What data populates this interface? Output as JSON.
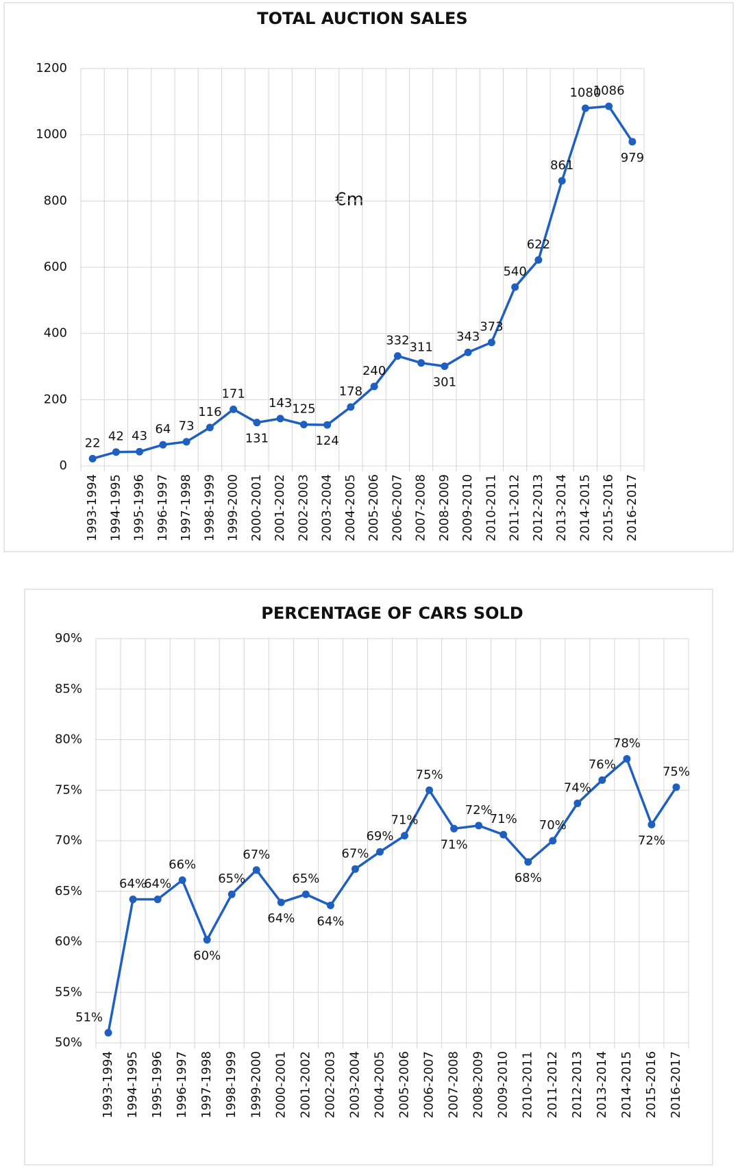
{
  "chart_data": [
    {
      "type": "line",
      "title": "TOTAL AUCTION SALES",
      "annotation": "€m",
      "categories": [
        "1993-1994",
        "1994-1995",
        "1995-1996",
        "1996-1997",
        "1997-1998",
        "1998-1999",
        "1999-2000",
        "2000-2001",
        "2001-2002",
        "2002-2003",
        "2003-2004",
        "2004-2005",
        "2005-2006",
        "2006-2007",
        "2007-2008",
        "2008-2009",
        "2009-2010",
        "2010-2011",
        "2011-2012",
        "2012-2013",
        "2013-2014",
        "2014-2015",
        "2015-2016",
        "2016-2017"
      ],
      "values": [
        22,
        42,
        43,
        64,
        73,
        116,
        171,
        131,
        143,
        125,
        124,
        178,
        240,
        332,
        311,
        301,
        343,
        373,
        540,
        622,
        861,
        1080,
        1086,
        979
      ],
      "color": "#1f5fbf",
      "ylim": [
        0,
        1200
      ],
      "yticks": [
        0,
        200,
        400,
        600,
        800,
        1000,
        1200
      ],
      "grid": true
    },
    {
      "type": "line",
      "title": "PERCENTAGE OF CARS SOLD",
      "categories": [
        "1993-1994",
        "1994-1995",
        "1995-1996",
        "1996-1997",
        "1997-1998",
        "1998-1999",
        "1999-2000",
        "2000-2001",
        "2001-2002",
        "2002-2003",
        "2003-2004",
        "2004-2005",
        "2005-2006",
        "2006-2007",
        "2007-2008",
        "2008-2009",
        "2009-2010",
        "2010-2011",
        "2011-2012",
        "2012-2013",
        "2013-2014",
        "2014-2015",
        "2015-2016",
        "2016-2017"
      ],
      "values": [
        51.0,
        64.2,
        64.2,
        66.1,
        60.2,
        64.7,
        67.1,
        63.9,
        64.7,
        63.6,
        67.2,
        68.9,
        70.5,
        75.0,
        71.2,
        71.5,
        70.6,
        67.9,
        70.0,
        73.7,
        76.0,
        78.1,
        71.6,
        75.3
      ],
      "value_labels": [
        "51%",
        "64%",
        "64%",
        "66%",
        "60%",
        "65%",
        "67%",
        "64%",
        "65%",
        "64%",
        "67%",
        "69%",
        "71%",
        "75%",
        "71%",
        "72%",
        "71%",
        "68%",
        "70%",
        "74%",
        "76%",
        "78%",
        "72%",
        "75%"
      ],
      "color": "#1f5fbf",
      "ylim": [
        50,
        90
      ],
      "yticks": [
        {
          "value": 50,
          "label": "50%"
        },
        {
          "value": 55,
          "label": "55%"
        },
        {
          "value": 60,
          "label": "60%"
        },
        {
          "value": 65,
          "label": "65%"
        },
        {
          "value": 70,
          "label": "70%"
        },
        {
          "value": 75,
          "label": "75%"
        },
        {
          "value": 80,
          "label": "80%"
        },
        {
          "value": 85,
          "label": "85%"
        },
        {
          "value": 90,
          "label": "90%"
        }
      ],
      "grid": true
    }
  ]
}
